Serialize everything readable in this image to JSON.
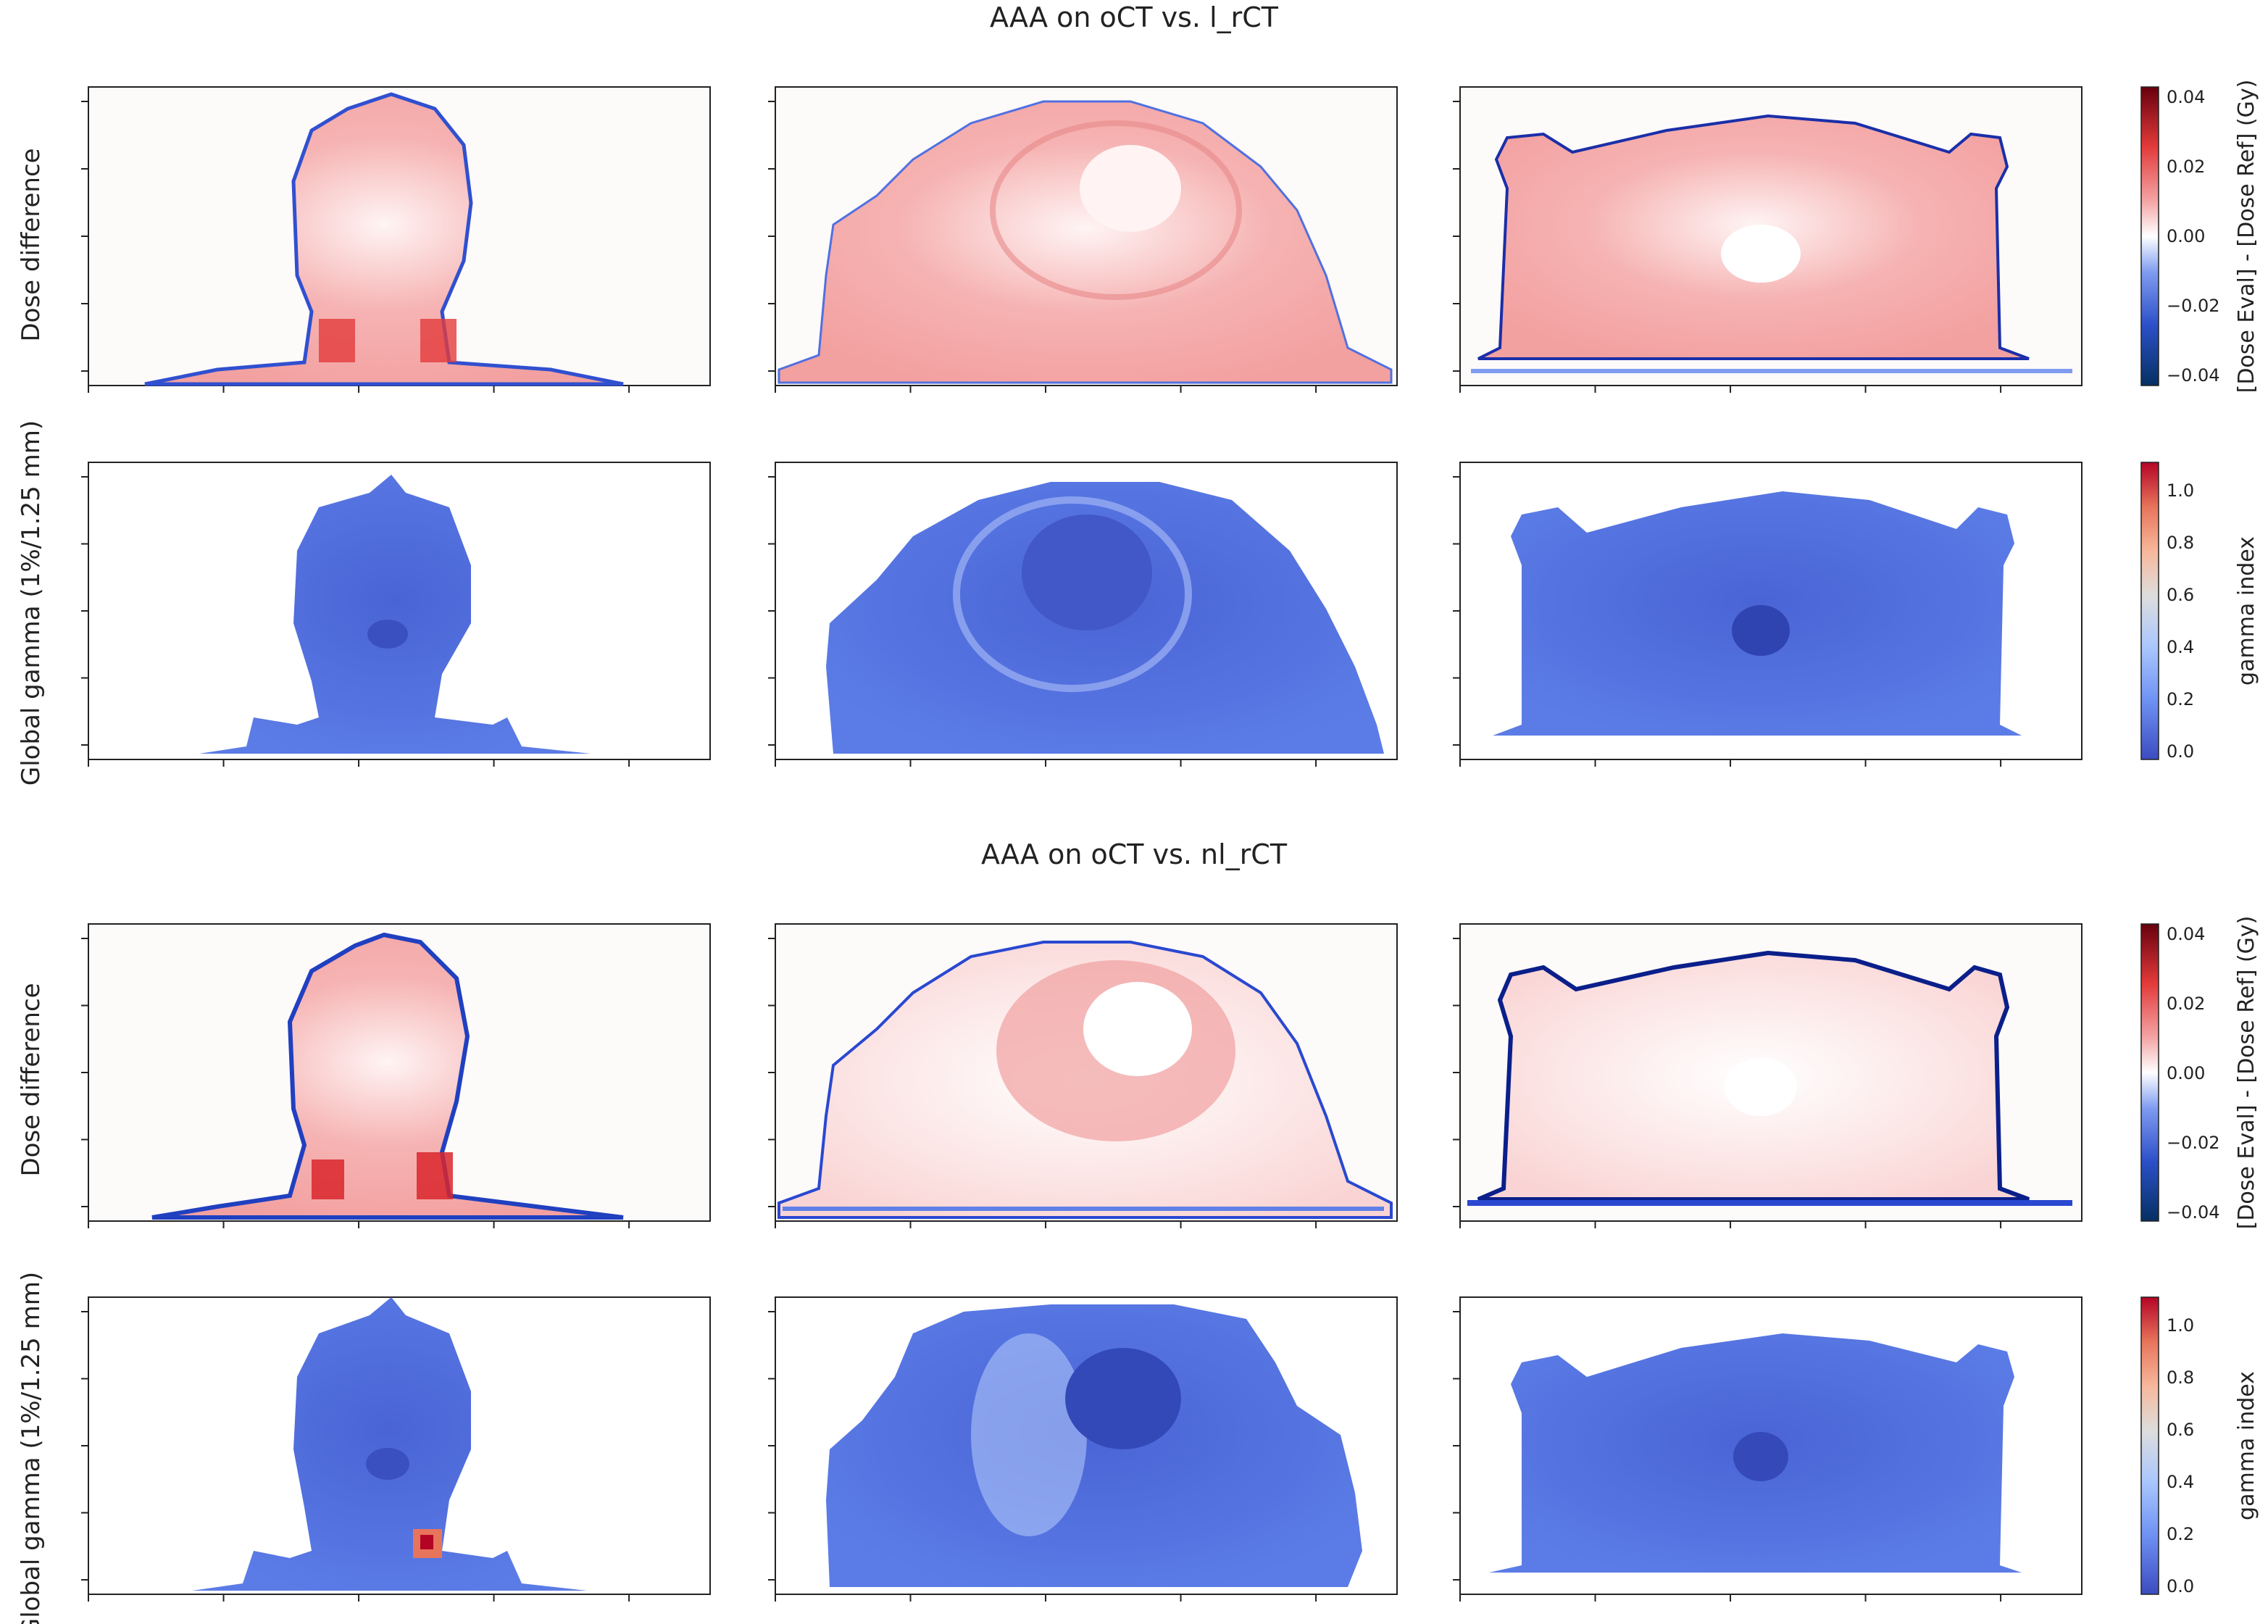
{
  "sections": [
    {
      "title": "AAA on oCT vs. l_rCT",
      "rows": [
        {
          "ylabel": "Dose difference",
          "colorbar_label": "[Dose Eval] - [Dose Ref] (Gy)",
          "ticks": [
            "0.04",
            "0.02",
            "0.00",
            "−0.02",
            "−0.04"
          ]
        },
        {
          "ylabel": "Global gamma (1%/1.25 mm)",
          "colorbar_label": "gamma index",
          "ticks": [
            "1.0",
            "0.8",
            "0.6",
            "0.4",
            "0.2",
            "0.0"
          ]
        }
      ]
    },
    {
      "title": "AAA on oCT vs. nl_rCT",
      "rows": [
        {
          "ylabel": "Dose difference",
          "colorbar_label": "[Dose Eval] - [Dose Ref] (Gy)",
          "ticks": [
            "0.04",
            "0.02",
            "0.00",
            "−0.02",
            "−0.04"
          ]
        },
        {
          "ylabel": "Global gamma (1%/1.25 mm)",
          "colorbar_label": "gamma index",
          "ticks": [
            "1.0",
            "0.8",
            "0.6",
            "0.4",
            "0.2",
            "0.0"
          ]
        }
      ]
    }
  ],
  "colormaps": {
    "diverging": [
      "#053061",
      "#2c4fc8",
      "#7f9cf0",
      "#ffffff",
      "#f4a3a3",
      "#e23a3a",
      "#67000d"
    ],
    "gamma": [
      "#3b4cc0",
      "#6f92f3",
      "#aac7fd",
      "#dddddd",
      "#f7b89c",
      "#e7745b",
      "#b40426"
    ]
  }
}
